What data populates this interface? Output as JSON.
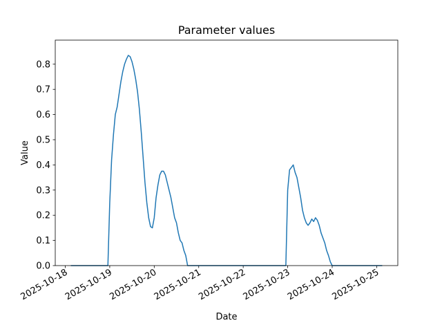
{
  "chart_data": {
    "type": "line",
    "title": "Parameter values",
    "x_label": "Date",
    "y_label": "Value",
    "x": [
      "2025-10-18T03:00",
      "2025-10-18T09:00",
      "2025-10-18T15:00",
      "2025-10-18T21:00",
      "2025-10-18T23:00",
      "2025-10-19T00:00",
      "2025-10-19T01:00",
      "2025-10-19T02:00",
      "2025-10-19T03:00",
      "2025-10-19T04:00",
      "2025-10-19T05:00",
      "2025-10-19T06:00",
      "2025-10-19T07:00",
      "2025-10-19T08:00",
      "2025-10-19T09:00",
      "2025-10-19T10:00",
      "2025-10-19T11:00",
      "2025-10-19T12:00",
      "2025-10-19T13:00",
      "2025-10-19T14:00",
      "2025-10-19T15:00",
      "2025-10-19T16:00",
      "2025-10-19T17:00",
      "2025-10-19T18:00",
      "2025-10-19T19:00",
      "2025-10-19T20:00",
      "2025-10-19T21:00",
      "2025-10-19T22:00",
      "2025-10-19T23:00",
      "2025-10-20T00:00",
      "2025-10-20T01:00",
      "2025-10-20T02:00",
      "2025-10-20T03:00",
      "2025-10-20T04:00",
      "2025-10-20T05:00",
      "2025-10-20T06:00",
      "2025-10-20T07:00",
      "2025-10-20T08:00",
      "2025-10-20T09:00",
      "2025-10-20T10:00",
      "2025-10-20T11:00",
      "2025-10-20T12:00",
      "2025-10-20T13:00",
      "2025-10-20T14:00",
      "2025-10-20T15:00",
      "2025-10-20T16:00",
      "2025-10-20T17:00",
      "2025-10-20T18:00",
      "2025-10-21T03:00",
      "2025-10-21T15:00",
      "2025-10-22T03:00",
      "2025-10-22T15:00",
      "2025-10-22T23:00",
      "2025-10-23T00:00",
      "2025-10-23T01:00",
      "2025-10-23T02:00",
      "2025-10-23T03:00",
      "2025-10-23T04:00",
      "2025-10-23T05:00",
      "2025-10-23T06:00",
      "2025-10-23T07:00",
      "2025-10-23T08:00",
      "2025-10-23T09:00",
      "2025-10-23T10:00",
      "2025-10-23T11:00",
      "2025-10-23T12:00",
      "2025-10-23T13:00",
      "2025-10-23T14:00",
      "2025-10-23T15:00",
      "2025-10-23T16:00",
      "2025-10-23T17:00",
      "2025-10-23T18:00",
      "2025-10-23T19:00",
      "2025-10-23T20:00",
      "2025-10-23T21:00",
      "2025-10-23T22:00",
      "2025-10-23T23:00",
      "2025-10-24T00:00",
      "2025-10-24T09:00",
      "2025-10-24T18:00",
      "2025-10-25T03:00"
    ],
    "values": [
      0,
      0,
      0,
      0,
      0,
      0.25,
      0.42,
      0.52,
      0.6,
      0.63,
      0.68,
      0.73,
      0.77,
      0.8,
      0.82,
      0.835,
      0.83,
      0.81,
      0.78,
      0.74,
      0.69,
      0.62,
      0.53,
      0.43,
      0.33,
      0.25,
      0.19,
      0.155,
      0.15,
      0.19,
      0.27,
      0.32,
      0.36,
      0.375,
      0.375,
      0.36,
      0.33,
      0.3,
      0.27,
      0.23,
      0.19,
      0.17,
      0.13,
      0.1,
      0.09,
      0.06,
      0.04,
      0,
      0,
      0,
      0,
      0,
      0,
      0.3,
      0.38,
      0.39,
      0.4,
      0.37,
      0.35,
      0.31,
      0.27,
      0.22,
      0.19,
      0.17,
      0.16,
      0.17,
      0.185,
      0.175,
      0.19,
      0.18,
      0.16,
      0.13,
      0.11,
      0.09,
      0.06,
      0.04,
      0.015,
      0,
      0,
      0,
      0
    ],
    "color": "#1f77b4",
    "xlim": [
      "2025-10-17T18:36",
      "2025-10-25T11:24"
    ],
    "xticks": [
      "2025-10-18",
      "2025-10-19",
      "2025-10-20",
      "2025-10-21",
      "2025-10-22",
      "2025-10-23",
      "2025-10-24",
      "2025-10-25"
    ],
    "ylim": [
      0,
      0.8956
    ],
    "yticks": [
      {
        "value": 0,
        "label": "0.0"
      },
      0.1,
      0.2,
      0.3,
      0.4,
      0.5,
      0.6,
      0.7,
      0.8
    ]
  }
}
